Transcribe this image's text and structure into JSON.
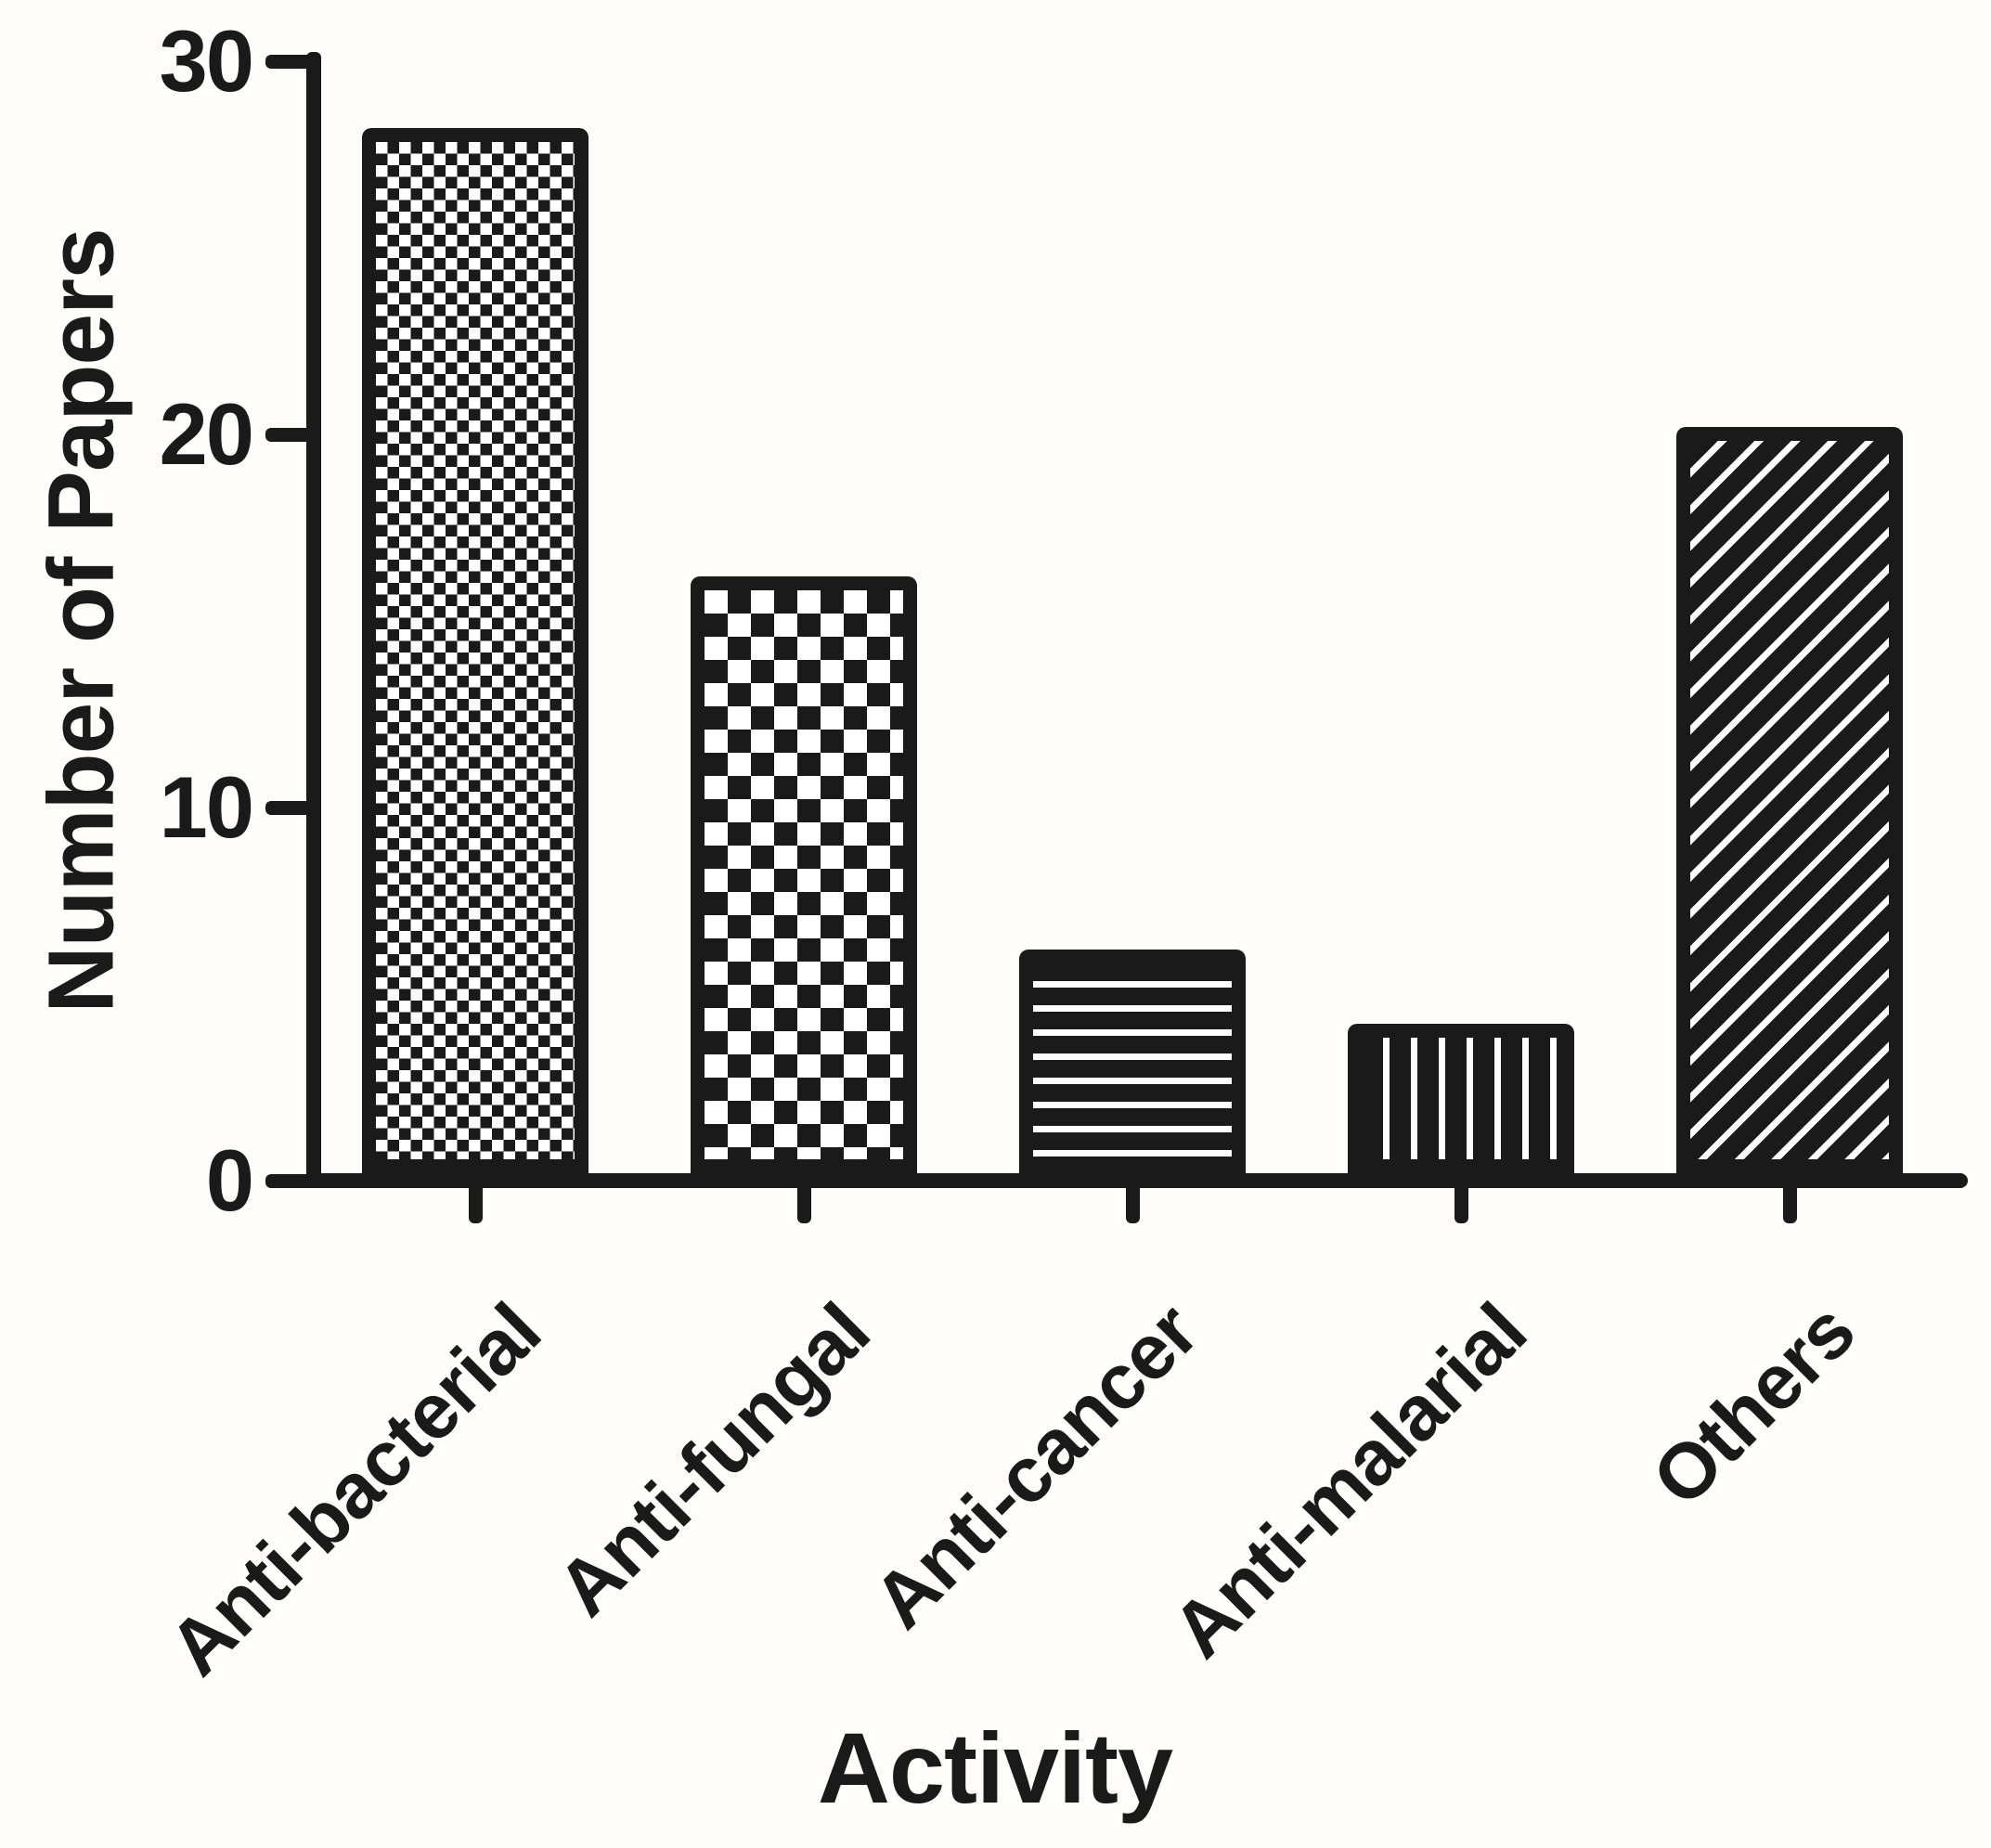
{
  "chart_data": {
    "type": "bar",
    "title": "",
    "xlabel": "Activity",
    "ylabel": "Number of Papers",
    "categories": [
      "Anti-bacterial",
      "Anti-fungal",
      "Anti-cancer",
      "Anti-malarial",
      "Others"
    ],
    "values": [
      28,
      16,
      6,
      4,
      20
    ],
    "ylim": [
      0,
      30
    ],
    "yticks": [
      0,
      10,
      20,
      30
    ],
    "grid": false,
    "legend": "none",
    "bar_patterns": [
      "fine-checker",
      "coarse-checker",
      "horizontal-stripes",
      "vertical-stripes",
      "diagonal-stripes"
    ],
    "ink_color": "#1a1a1a",
    "background": "#fffdf9"
  }
}
